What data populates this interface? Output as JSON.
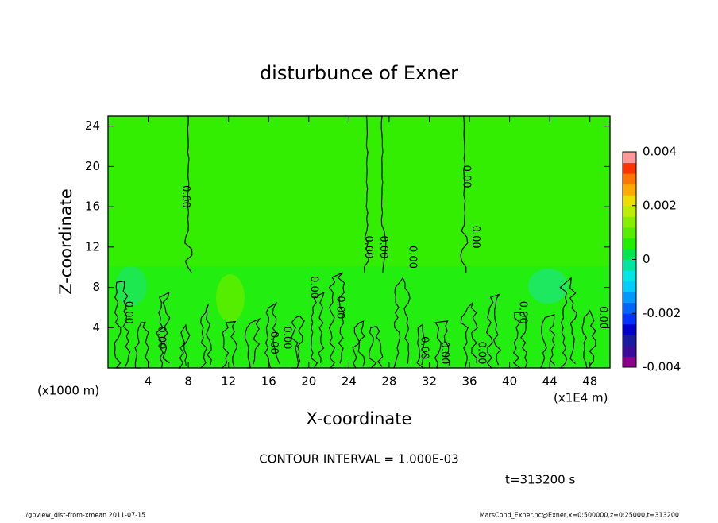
{
  "chart_data": {
    "type": "contour",
    "title": "disturbunce of Exner",
    "x_label": "X-coordinate",
    "y_label": "Z-coordinate",
    "x_unit": "(x1000 m)",
    "x_unit2": "(x1E4 m)",
    "xlim": [
      0,
      50
    ],
    "ylim": [
      0,
      25
    ],
    "xticks": [
      4,
      8,
      12,
      16,
      20,
      24,
      28,
      32,
      36,
      40,
      44,
      48
    ],
    "yticks": [
      4,
      8,
      12,
      16,
      20,
      24
    ],
    "contour_label": "0.00",
    "contour_interval": "CONTOUR INTERVAL = 1.000E-03",
    "time_label": "t=313200 s",
    "colorbar": {
      "lim": [
        -0.004,
        0.004
      ],
      "ticks": [
        -0.004,
        -0.002,
        0,
        0.002,
        0.004
      ],
      "colors": [
        "#8b008b",
        "#3a0a9a",
        "#1a1aa0",
        "#0000cd",
        "#0033ff",
        "#0066ff",
        "#0099ff",
        "#00ccff",
        "#00e6e6",
        "#00e6a0",
        "#00e650",
        "#22ee00",
        "#55ee00",
        "#88ee00",
        "#bbee00",
        "#eedd00",
        "#ffaa00",
        "#ff7700",
        "#ff3300",
        "#ff9999"
      ]
    },
    "footer_left": "./gpview_dist-from-xmean  2011-07-15",
    "footer_right": "MarsCond_Exner.nc@Exner,x=0:500000,z=0:25000,t=313200"
  }
}
